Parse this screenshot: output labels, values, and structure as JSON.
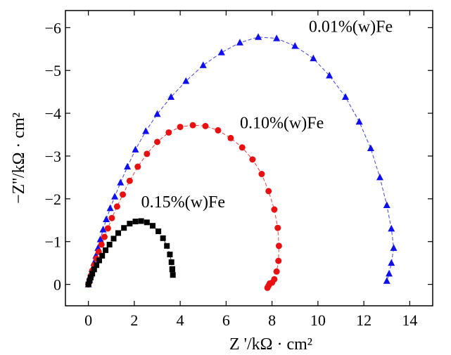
{
  "chart_data": {
    "type": "scatter",
    "xlabel": "Z '/kΩ · cm²",
    "ylabel": "−Z''/kΩ · cm²",
    "xlim": [
      -1,
      15
    ],
    "ylim": [
      0.5,
      -6.4
    ],
    "y_axis_reversed": true,
    "x_ticks": [
      0,
      2,
      4,
      6,
      8,
      10,
      12,
      14
    ],
    "y_ticks": [
      0,
      -1,
      -2,
      -3,
      -4,
      -5,
      -6
    ],
    "x_tick_labels": [
      "0",
      "2",
      "4",
      "6",
      "8",
      "10",
      "12",
      "14"
    ],
    "y_tick_labels": [
      "0",
      "−1",
      "−2",
      "−3",
      "−4",
      "−5",
      "−6"
    ],
    "grid": false,
    "legend": "inline labels",
    "series": [
      {
        "name": "0.01%(w)Fe",
        "label_text": "0.01%(w)Fe",
        "color": "#1010ee",
        "marker": "triangle",
        "label_at": [
          9.6,
          -5.9
        ],
        "points": [
          [
            0.0,
            0.0
          ],
          [
            0.05,
            -0.11
          ],
          [
            0.1,
            -0.22
          ],
          [
            0.16,
            -0.35
          ],
          [
            0.24,
            -0.5
          ],
          [
            0.33,
            -0.67
          ],
          [
            0.42,
            -0.85
          ],
          [
            0.52,
            -1.05
          ],
          [
            0.64,
            -1.28
          ],
          [
            0.78,
            -1.52
          ],
          [
            0.95,
            -1.78
          ],
          [
            1.15,
            -2.05
          ],
          [
            1.4,
            -2.38
          ],
          [
            1.7,
            -2.75
          ],
          [
            2.05,
            -3.15
          ],
          [
            2.5,
            -3.58
          ],
          [
            3.0,
            -3.98
          ],
          [
            3.6,
            -4.38
          ],
          [
            4.25,
            -4.75
          ],
          [
            5.0,
            -5.12
          ],
          [
            5.8,
            -5.42
          ],
          [
            6.6,
            -5.65
          ],
          [
            7.4,
            -5.78
          ],
          [
            8.2,
            -5.75
          ],
          [
            9.0,
            -5.57
          ],
          [
            9.8,
            -5.28
          ],
          [
            10.5,
            -4.88
          ],
          [
            11.2,
            -4.38
          ],
          [
            11.8,
            -3.8
          ],
          [
            12.3,
            -3.18
          ],
          [
            12.7,
            -2.5
          ],
          [
            13.0,
            -1.85
          ],
          [
            13.2,
            -1.3
          ],
          [
            13.3,
            -0.85
          ],
          [
            13.2,
            -0.5
          ],
          [
            13.1,
            -0.25
          ],
          [
            13.0,
            -0.08
          ]
        ]
      },
      {
        "name": "0.10%(w)Fe",
        "label_text": "0.10%(w)Fe",
        "color": "#e81010",
        "marker": "circle",
        "label_at": [
          6.6,
          -3.65
        ],
        "points": [
          [
            0.0,
            0.0
          ],
          [
            0.05,
            -0.1
          ],
          [
            0.1,
            -0.2
          ],
          [
            0.17,
            -0.32
          ],
          [
            0.25,
            -0.45
          ],
          [
            0.35,
            -0.6
          ],
          [
            0.45,
            -0.76
          ],
          [
            0.57,
            -0.93
          ],
          [
            0.7,
            -1.11
          ],
          [
            0.85,
            -1.31
          ],
          [
            1.02,
            -1.55
          ],
          [
            1.25,
            -1.82
          ],
          [
            1.5,
            -2.1
          ],
          [
            1.8,
            -2.42
          ],
          [
            2.15,
            -2.75
          ],
          [
            2.55,
            -3.05
          ],
          [
            3.0,
            -3.33
          ],
          [
            3.5,
            -3.55
          ],
          [
            4.0,
            -3.68
          ],
          [
            4.55,
            -3.72
          ],
          [
            5.1,
            -3.7
          ],
          [
            5.65,
            -3.6
          ],
          [
            6.2,
            -3.42
          ],
          [
            6.7,
            -3.2
          ],
          [
            7.15,
            -2.92
          ],
          [
            7.55,
            -2.58
          ],
          [
            7.85,
            -2.18
          ],
          [
            8.1,
            -1.75
          ],
          [
            8.25,
            -1.32
          ],
          [
            8.3,
            -0.9
          ],
          [
            8.28,
            -0.55
          ],
          [
            8.2,
            -0.3
          ],
          [
            8.1,
            -0.12
          ],
          [
            8.0,
            -0.04
          ],
          [
            7.9,
            -0.02
          ],
          [
            7.85,
            0.03
          ],
          [
            7.8,
            0.08
          ]
        ]
      },
      {
        "name": "0.15%(w)Fe",
        "label_text": "0.15%(w)Fe",
        "color": "#000000",
        "marker": "square",
        "label_at": [
          2.3,
          -1.8
        ],
        "points": [
          [
            0.0,
            0.0
          ],
          [
            0.05,
            -0.08
          ],
          [
            0.1,
            -0.16
          ],
          [
            0.17,
            -0.25
          ],
          [
            0.25,
            -0.35
          ],
          [
            0.35,
            -0.45
          ],
          [
            0.47,
            -0.56
          ],
          [
            0.6,
            -0.67
          ],
          [
            0.75,
            -0.8
          ],
          [
            0.92,
            -0.93
          ],
          [
            1.1,
            -1.07
          ],
          [
            1.3,
            -1.2
          ],
          [
            1.55,
            -1.32
          ],
          [
            1.8,
            -1.42
          ],
          [
            2.05,
            -1.47
          ],
          [
            2.3,
            -1.48
          ],
          [
            2.55,
            -1.45
          ],
          [
            2.8,
            -1.37
          ],
          [
            3.05,
            -1.24
          ],
          [
            3.25,
            -1.08
          ],
          [
            3.42,
            -0.9
          ],
          [
            3.55,
            -0.7
          ],
          [
            3.62,
            -0.52
          ],
          [
            3.66,
            -0.36
          ],
          [
            3.68,
            -0.22
          ],
          [
            3.65,
            -0.35
          ]
        ]
      }
    ]
  }
}
